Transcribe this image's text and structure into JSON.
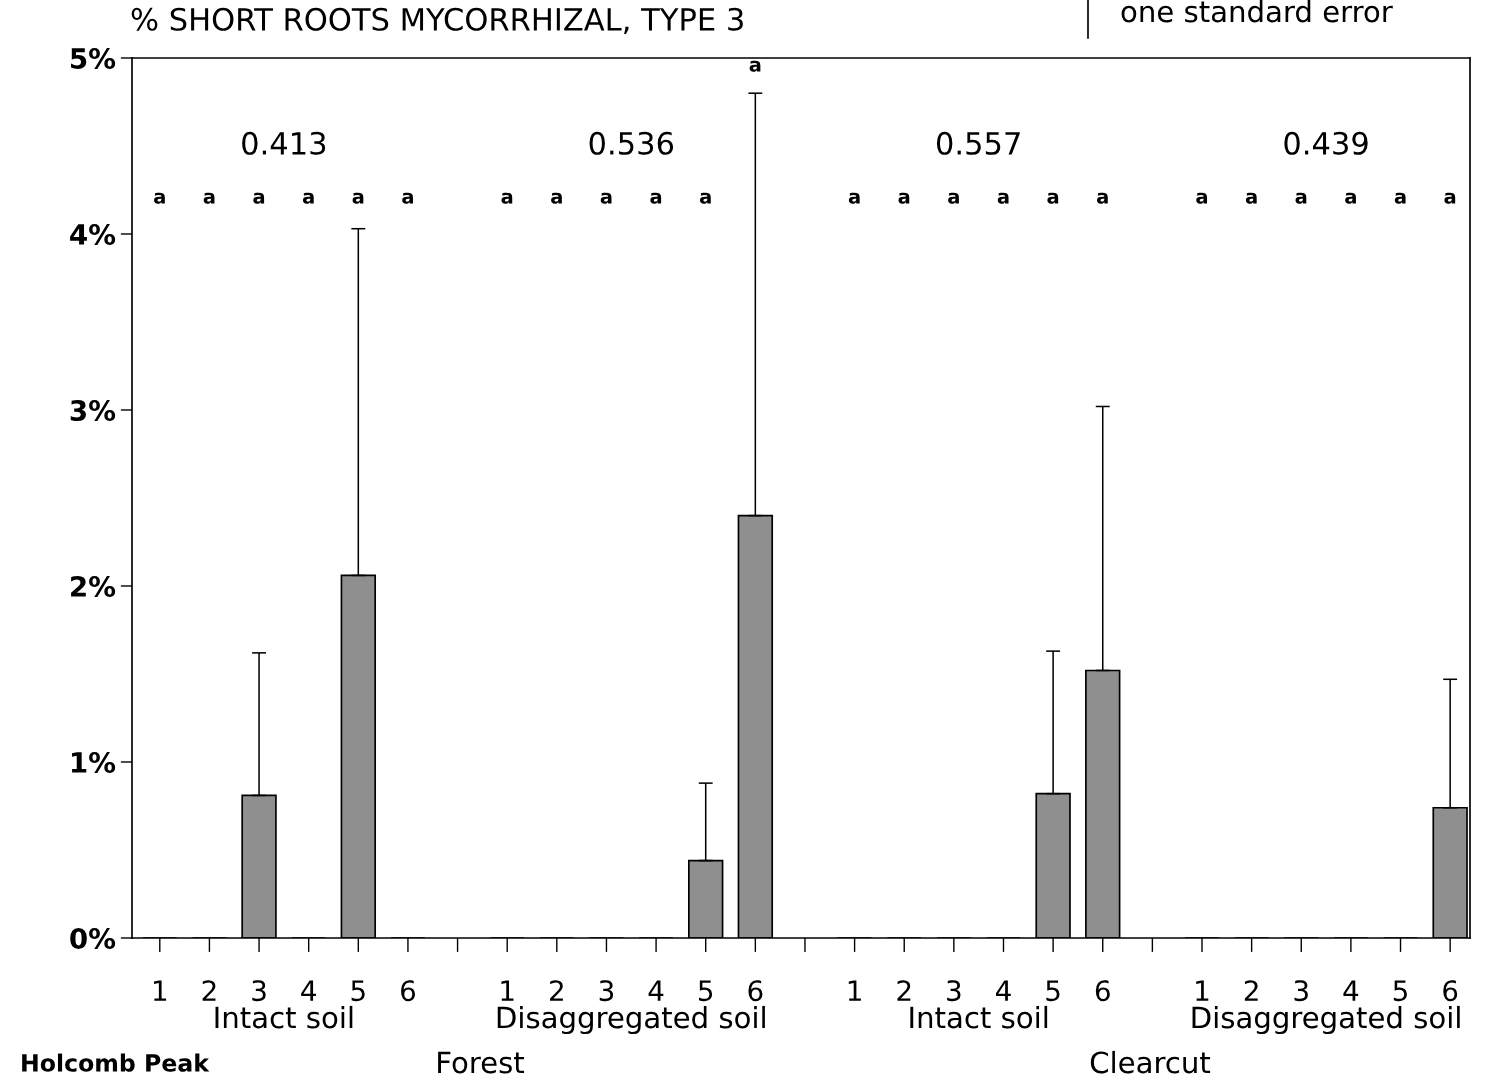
{
  "chart_data": {
    "type": "bar",
    "title": "% SHORT ROOTS MYCORRHIZAL, TYPE 3",
    "categories": [
      "1",
      "2",
      "3",
      "4",
      "5",
      "6",
      null,
      "1",
      "2",
      "3",
      "4",
      "5",
      "6",
      null,
      "1",
      "2",
      "3",
      "4",
      "5",
      "6",
      null,
      "1",
      "2",
      "3",
      "4",
      "5",
      "6"
    ],
    "values": [
      0,
      0,
      0.81,
      0,
      2.06,
      0,
      null,
      0,
      0,
      0,
      0,
      0.44,
      2.4,
      null,
      0,
      0,
      0,
      0,
      0.82,
      1.52,
      null,
      0,
      0,
      0,
      0,
      0,
      0.74
    ],
    "errors": [
      null,
      null,
      0.81,
      null,
      1.97,
      null,
      null,
      null,
      null,
      null,
      null,
      0.44,
      2.4,
      null,
      null,
      null,
      null,
      null,
      0.81,
      1.5,
      null,
      null,
      null,
      null,
      null,
      null,
      0.73
    ],
    "color": "#8f8f8f",
    "ylim": [
      0,
      5
    ],
    "yticks": [
      {
        "value": 0,
        "label": "0%"
      },
      {
        "value": 1,
        "label": "1%"
      },
      {
        "value": 2,
        "label": "2%"
      },
      {
        "value": 3,
        "label": "3%"
      },
      {
        "value": 4,
        "label": "4%"
      },
      {
        "value": 5,
        "label": "5%"
      }
    ],
    "grid": false,
    "legend": false,
    "annotations": [
      "a",
      "a",
      "a",
      "a",
      "a",
      "a",
      "a",
      "a",
      "a",
      "a",
      "a",
      "a",
      "a",
      "a",
      "a",
      "a",
      "a",
      "a",
      "a",
      "a",
      "a",
      "a",
      "a",
      "a",
      "0.413",
      "0.536",
      "0.557",
      "0.439",
      "Intact soil",
      "Disaggregated soil",
      "Intact soil",
      "Disaggregated soil",
      "Holcomb Peak",
      "Forest",
      "Clearcut",
      "one standard error"
    ]
  }
}
